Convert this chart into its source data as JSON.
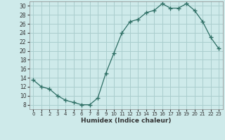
{
  "x": [
    0,
    1,
    2,
    3,
    4,
    5,
    6,
    7,
    8,
    9,
    10,
    11,
    12,
    13,
    14,
    15,
    16,
    17,
    18,
    19,
    20,
    21,
    22,
    23
  ],
  "y": [
    13.5,
    12.0,
    11.5,
    10.0,
    9.0,
    8.5,
    8.0,
    8.0,
    9.5,
    15.0,
    19.5,
    24.0,
    26.5,
    27.0,
    28.5,
    29.0,
    30.5,
    29.5,
    29.5,
    30.5,
    29.0,
    26.5,
    23.0,
    20.5
  ],
  "line_color": "#2d6e64",
  "marker": "+",
  "marker_size": 4,
  "marker_lw": 1.0,
  "bg_color": "#ceeaea",
  "grid_color": "#aacece",
  "xlabel": "Humidex (Indice chaleur)",
  "xlim": [
    -0.5,
    23.5
  ],
  "ylim": [
    7,
    31
  ],
  "yticks": [
    8,
    10,
    12,
    14,
    16,
    18,
    20,
    22,
    24,
    26,
    28,
    30
  ],
  "xticks": [
    0,
    1,
    2,
    3,
    4,
    5,
    6,
    7,
    8,
    9,
    10,
    11,
    12,
    13,
    14,
    15,
    16,
    17,
    18,
    19,
    20,
    21,
    22,
    23
  ]
}
